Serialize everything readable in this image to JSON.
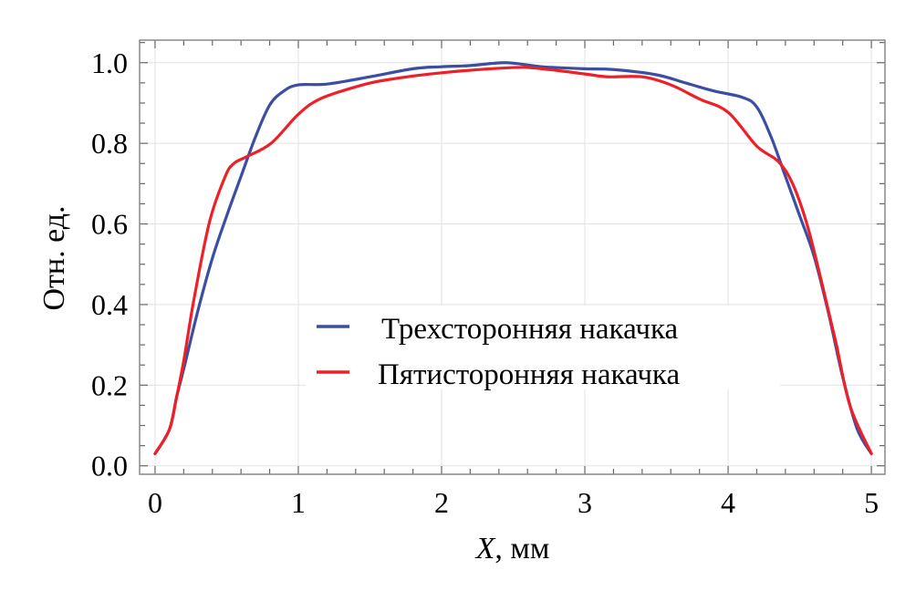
{
  "chart_data": {
    "type": "line",
    "title": "",
    "xlabel_var": "X",
    "xlabel_unit": ", мм",
    "ylabel": "Отн. ед.",
    "xlim": [
      -0.108,
      5.095
    ],
    "ylim": [
      -0.021,
      1.056
    ],
    "xticks": [
      0,
      1,
      2,
      3,
      4,
      5
    ],
    "xtick_labels": [
      "0",
      "1",
      "2",
      "3",
      "4",
      "5"
    ],
    "yticks": [
      0.0,
      0.2,
      0.4,
      0.6,
      0.8,
      1.0
    ],
    "ytick_labels": [
      "0.0",
      "0.2",
      "0.4",
      "0.6",
      "0.8",
      "1.0"
    ],
    "grid": true,
    "legend_position": "center-right",
    "series": [
      {
        "name": "Трехсторонняя накачка",
        "color": "#3a4fa3",
        "x": [
          0,
          0.1,
          0.15,
          0.2,
          0.3,
          0.4,
          0.5,
          0.6,
          0.7,
          0.8,
          0.9,
          1.0,
          1.2,
          1.5,
          1.8,
          2.0,
          2.2,
          2.45,
          2.7,
          3.0,
          3.2,
          3.5,
          3.7,
          3.9,
          4.1,
          4.2,
          4.3,
          4.4,
          4.5,
          4.6,
          4.7,
          4.8,
          4.9,
          5.0
        ],
        "y": [
          0.03,
          0.09,
          0.17,
          0.24,
          0.386,
          0.515,
          0.62,
          0.718,
          0.815,
          0.895,
          0.93,
          0.945,
          0.947,
          0.965,
          0.985,
          0.99,
          0.993,
          1.0,
          0.99,
          0.985,
          0.983,
          0.97,
          0.95,
          0.93,
          0.914,
          0.89,
          0.816,
          0.718,
          0.62,
          0.52,
          0.38,
          0.22,
          0.092,
          0.03
        ]
      },
      {
        "name": "Пятисторонняя накачка",
        "color": "#ee2027",
        "x": [
          0,
          0.1,
          0.15,
          0.2,
          0.27,
          0.38,
          0.49,
          0.55,
          0.64,
          0.81,
          1.0,
          1.15,
          1.4,
          1.61,
          2.0,
          2.5,
          2.7,
          3.0,
          3.16,
          3.4,
          3.6,
          3.8,
          4.0,
          4.2,
          4.35,
          4.45,
          4.55,
          4.65,
          4.75,
          4.85,
          5.0
        ],
        "y": [
          0.03,
          0.09,
          0.17,
          0.26,
          0.41,
          0.605,
          0.718,
          0.75,
          0.767,
          0.8,
          0.872,
          0.91,
          0.94,
          0.957,
          0.975,
          0.988,
          0.985,
          0.972,
          0.965,
          0.965,
          0.945,
          0.91,
          0.877,
          0.793,
          0.755,
          0.7,
          0.6,
          0.46,
          0.31,
          0.15,
          0.03
        ]
      }
    ]
  }
}
